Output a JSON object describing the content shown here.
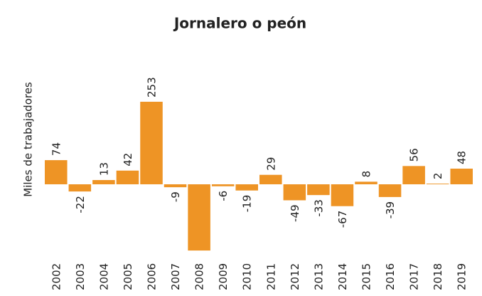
{
  "chart_data": {
    "type": "bar",
    "title": "Jornalero o peón",
    "y_label": "Miles de trabajadores",
    "categories": [
      "2002",
      "2003",
      "2004",
      "2005",
      "2006",
      "2007",
      "2008",
      "2009",
      "2010",
      "2011",
      "2012",
      "2013",
      "2014",
      "2015",
      "2016",
      "2017",
      "2018",
      "2019"
    ],
    "values": [
      74,
      -22,
      13,
      42,
      253,
      -9,
      -203,
      -6,
      -19,
      29,
      -49,
      -33,
      -67,
      8,
      -39,
      56,
      2,
      48
    ],
    "value_labels": [
      "74",
      "-22",
      "13",
      "42",
      "253",
      "-9",
      null,
      "-6",
      "-19",
      "29",
      "-49",
      "-33",
      "-67",
      "8",
      "-39",
      "56",
      "2",
      "48"
    ],
    "color": "#ee9425",
    "ylim": [
      -210,
      260
    ],
    "grid": false
  }
}
